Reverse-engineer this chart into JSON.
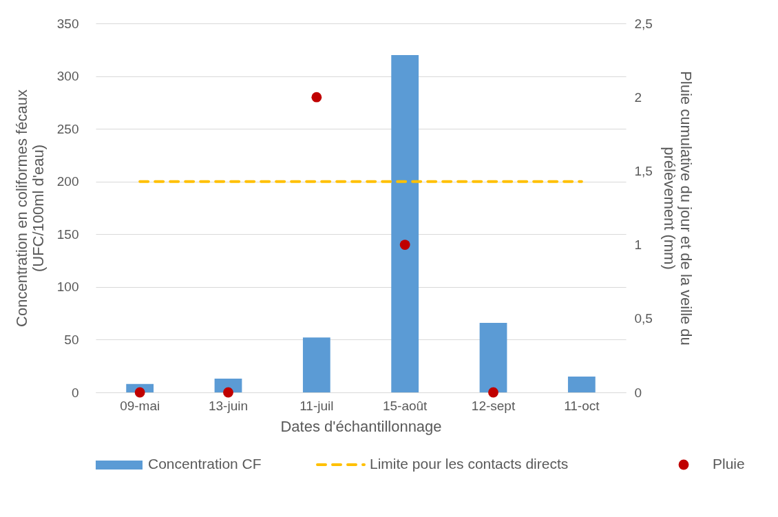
{
  "chart_data": {
    "type": "bar",
    "xlabel": "Dates d'échantillonnage",
    "ylabel": "Concentration en coliformes fécaux\n(UFC/100ml d'eau)",
    "y2label": "Pluie cumulative du jour et de la veille du\nprélèvement (mm)",
    "categories": [
      "09-mai",
      "13-juin",
      "11-juil",
      "15-août",
      "12-sept",
      "11-oct"
    ],
    "series": [
      {
        "name": "Concentration CF",
        "color": "#5b9bd5",
        "values": [
          8,
          13,
          52,
          320,
          66,
          15
        ]
      },
      {
        "name": "Limite pour les contacts directs",
        "type": "line",
        "line_style": "dashed",
        "color": "#ffc000",
        "values": [
          200,
          200,
          200,
          200,
          200,
          200
        ]
      },
      {
        "name": "Pluie",
        "type": "scatter",
        "axis": "y2",
        "marker": "circle",
        "color": "#c00000",
        "values": [
          0,
          0,
          2,
          1,
          0,
          null
        ]
      }
    ],
    "ylim": [
      0,
      350
    ],
    "yticks": [
      0,
      50,
      100,
      150,
      200,
      250,
      300,
      350
    ],
    "y2lim": [
      0,
      2.5
    ],
    "y2ticks": [
      0,
      {
        "value": 0.5,
        "label": "0,5"
      },
      1,
      {
        "value": 1.5,
        "label": "1,5"
      },
      2,
      {
        "value": 2.5,
        "label": "2,5"
      }
    ],
    "grid": "y",
    "legend": "bottom"
  }
}
